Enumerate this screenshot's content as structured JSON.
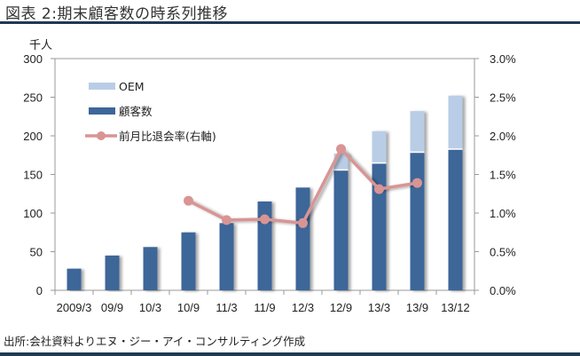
{
  "title": "図表 2:期末顧客数の時系列推移",
  "source": "出所:会社資料よりエヌ・ジー・アイ・コンサルティング作成",
  "colors": {
    "customers": "#3d6699",
    "oem": "#b9cde6",
    "line": "#d99494",
    "rule": "#1f3a52",
    "axis": "#999999"
  },
  "chart_data": {
    "type": "bar",
    "stacked": true,
    "title": "図表 2:期末顧客数の時系列推移",
    "ylabel": "千人",
    "ylim": [
      0,
      300
    ],
    "y_ticks": [
      "0",
      "50",
      "100",
      "150",
      "200",
      "250",
      "300"
    ],
    "y_tick_values": [
      0,
      50,
      100,
      150,
      200,
      250,
      300
    ],
    "y2lim": [
      0,
      3.0
    ],
    "y2_ticks": [
      "0.0%",
      "0.5%",
      "1.0%",
      "1.5%",
      "2.0%",
      "2.5%",
      "3.0%"
    ],
    "y2_tick_values": [
      0,
      0.5,
      1.0,
      1.5,
      2.0,
      2.5,
      3.0
    ],
    "categories": [
      "2009/3",
      "09/9",
      "10/3",
      "10/9",
      "11/3",
      "11/9",
      "12/3",
      "12/9",
      "13/3",
      "13/9",
      "13/12"
    ],
    "legend_position": "top-left",
    "grid": false,
    "series": [
      {
        "name": "顧客数",
        "type": "bar",
        "axis": "left",
        "values": [
          28,
          45,
          56,
          75,
          87,
          115,
          133,
          155,
          164,
          178,
          182
        ]
      },
      {
        "name": "OEM",
        "type": "bar",
        "axis": "left",
        "values": [
          0,
          0,
          0,
          0,
          0,
          0,
          0,
          22,
          42,
          54,
          70
        ]
      },
      {
        "name": "前月比退会率(右軸)",
        "type": "line",
        "axis": "right",
        "unit": "%",
        "values": [
          null,
          null,
          null,
          1.16,
          0.91,
          0.92,
          0.87,
          1.83,
          1.31,
          1.39,
          null
        ]
      }
    ],
    "legend": [
      "OEM",
      "顧客数",
      "前月比退会率(右軸)"
    ]
  }
}
